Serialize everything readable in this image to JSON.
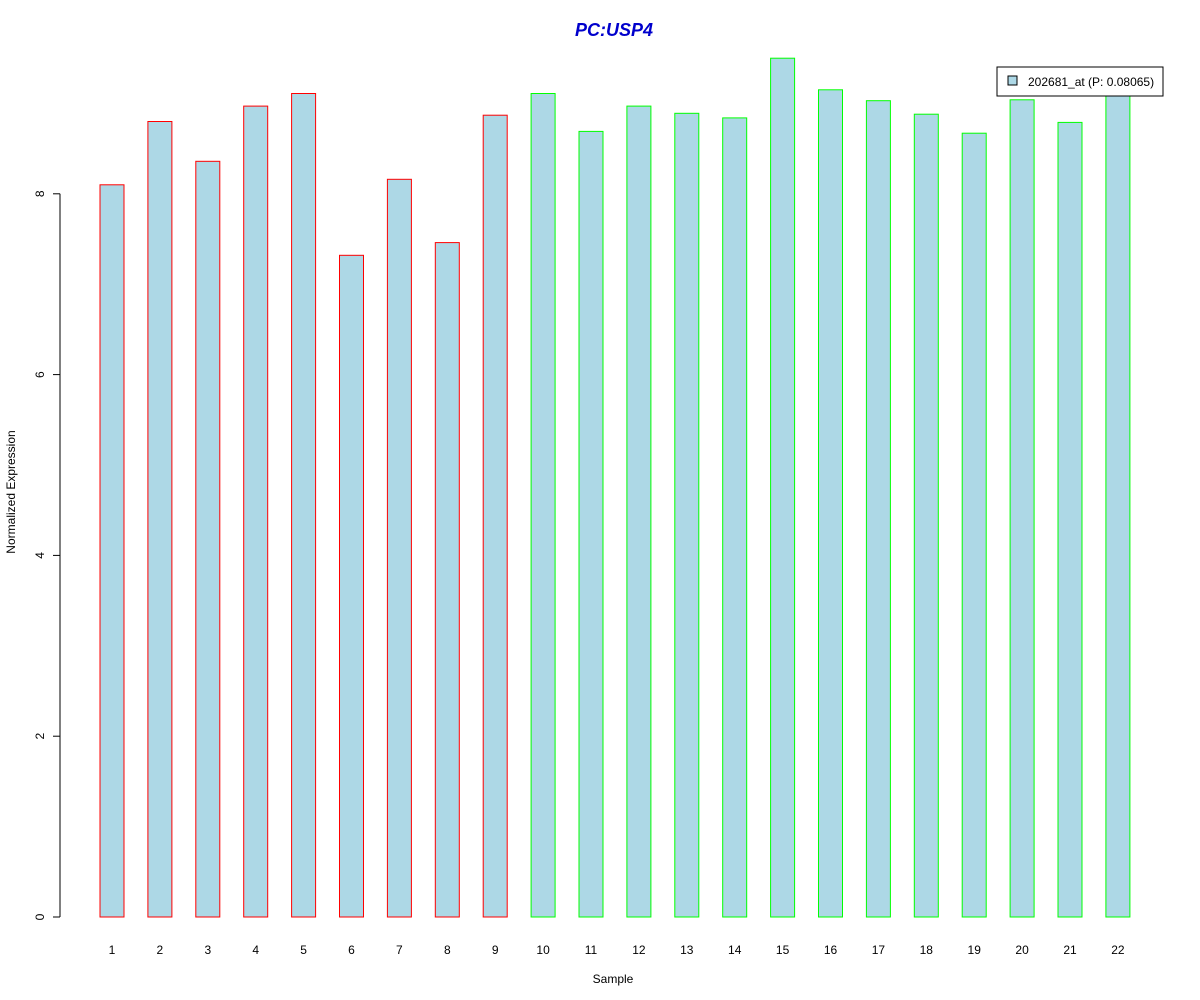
{
  "chart_data": {
    "type": "bar",
    "title": "PC:USP4",
    "xlabel": "Sample",
    "ylabel": "Normalized Expression",
    "categories": [
      "1",
      "2",
      "3",
      "4",
      "5",
      "6",
      "7",
      "8",
      "9",
      "10",
      "11",
      "12",
      "13",
      "14",
      "15",
      "16",
      "17",
      "18",
      "19",
      "20",
      "21",
      "22"
    ],
    "series": [
      {
        "name": "202681_at (P: 0.08065)",
        "values": [
          8.1,
          8.8,
          8.36,
          8.97,
          9.11,
          7.32,
          8.16,
          7.46,
          8.87,
          9.11,
          8.69,
          8.97,
          8.89,
          8.84,
          9.5,
          9.15,
          9.03,
          8.88,
          8.67,
          9.04,
          8.79,
          9.12
        ]
      }
    ],
    "group_border_colors": [
      "#ff0000",
      "#ff0000",
      "#ff0000",
      "#ff0000",
      "#ff0000",
      "#ff0000",
      "#ff0000",
      "#ff0000",
      "#ff0000",
      "#00ff00",
      "#00ff00",
      "#00ff00",
      "#00ff00",
      "#00ff00",
      "#00ff00",
      "#00ff00",
      "#00ff00",
      "#00ff00",
      "#00ff00",
      "#00ff00",
      "#00ff00",
      "#00ff00"
    ],
    "fill_color": "#add8e6",
    "title_color": "#0000cc",
    "yticks": [
      0,
      2,
      4,
      6,
      8
    ],
    "ylim": [
      0,
      9.5
    ],
    "grid": false,
    "legend_position": "top-right"
  }
}
